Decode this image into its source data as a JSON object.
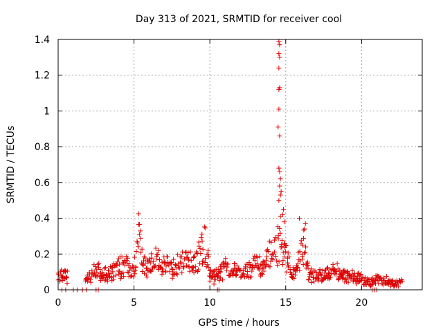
{
  "chart_data": {
    "type": "scatter",
    "title": "Day 313 of 2021, SRMTID for receiver cool",
    "xlabel": "GPS time / hours",
    "ylabel": "SRMTID / TECUs",
    "xlim": [
      0,
      24
    ],
    "ylim": [
      0,
      1.4
    ],
    "grid": true,
    "marker": "+",
    "color": "#dd0000",
    "x_ticks": [
      0,
      5,
      10,
      15,
      20
    ],
    "y_ticks": [
      0,
      0.2,
      0.4,
      0.6,
      0.8,
      1,
      1.2,
      1.4
    ],
    "x_tick_labels": [
      "0",
      "5",
      "10",
      "15",
      "20"
    ],
    "y_tick_labels": [
      "0",
      "0.2",
      "0.4",
      "0.6",
      "0.8",
      "1",
      "1.2",
      "1.4"
    ],
    "zero_points_x": [
      0.25,
      0.5,
      1.0,
      1.25,
      1.6,
      1.85,
      2.5,
      2.65,
      10.5,
      10.6,
      20.7,
      20.85,
      21.0
    ],
    "peak_points": [
      {
        "x": 14.55,
        "y": 1.39
      },
      {
        "x": 14.6,
        "y": 1.37
      },
      {
        "x": 14.55,
        "y": 1.32
      },
      {
        "x": 14.6,
        "y": 1.3
      },
      {
        "x": 14.55,
        "y": 1.24
      },
      {
        "x": 14.6,
        "y": 1.13
      },
      {
        "x": 14.55,
        "y": 1.12
      },
      {
        "x": 14.55,
        "y": 1.01
      },
      {
        "x": 14.5,
        "y": 0.91
      },
      {
        "x": 14.6,
        "y": 0.86
      },
      {
        "x": 14.55,
        "y": 0.68
      },
      {
        "x": 14.6,
        "y": 0.66
      },
      {
        "x": 14.65,
        "y": 0.62
      },
      {
        "x": 14.6,
        "y": 0.58
      },
      {
        "x": 14.7,
        "y": 0.55
      },
      {
        "x": 14.65,
        "y": 0.53
      },
      {
        "x": 14.55,
        "y": 0.5
      },
      {
        "x": 14.85,
        "y": 0.45
      },
      {
        "x": 14.8,
        "y": 0.42
      },
      {
        "x": 14.65,
        "y": 0.41
      },
      {
        "x": 14.9,
        "y": 0.38
      },
      {
        "x": 15.9,
        "y": 0.4
      },
      {
        "x": 16.3,
        "y": 0.37
      },
      {
        "x": 16.25,
        "y": 0.34
      }
    ],
    "series_profile": {
      "x": [
        0.0,
        0.5,
        1.8,
        2.2,
        2.6,
        3.0,
        3.5,
        4.0,
        4.5,
        5.0,
        5.2,
        5.3,
        5.6,
        6.0,
        6.5,
        7.0,
        7.5,
        8.0,
        8.5,
        9.0,
        9.5,
        9.7,
        10.0,
        10.5,
        11.0,
        11.5,
        12.0,
        12.5,
        13.0,
        13.5,
        13.8,
        14.0,
        14.3,
        14.5,
        14.8,
        15.0,
        15.3,
        15.6,
        15.9,
        16.2,
        16.5,
        17.0,
        17.5,
        18.0,
        18.3,
        18.6,
        19.0,
        19.5,
        20.0,
        20.5,
        21.0,
        21.5,
        22.0,
        22.5,
        22.7
      ],
      "y": [
        0.08,
        0.08,
        0.07,
        0.09,
        0.11,
        0.09,
        0.1,
        0.14,
        0.13,
        0.11,
        0.26,
        0.32,
        0.15,
        0.15,
        0.17,
        0.14,
        0.13,
        0.15,
        0.18,
        0.16,
        0.24,
        0.29,
        0.09,
        0.08,
        0.14,
        0.12,
        0.09,
        0.12,
        0.15,
        0.12,
        0.2,
        0.2,
        0.24,
        0.28,
        0.25,
        0.2,
        0.13,
        0.12,
        0.18,
        0.25,
        0.1,
        0.07,
        0.09,
        0.09,
        0.12,
        0.08,
        0.08,
        0.07,
        0.06,
        0.05,
        0.05,
        0.05,
        0.04,
        0.05,
        0.05
      ]
    }
  }
}
